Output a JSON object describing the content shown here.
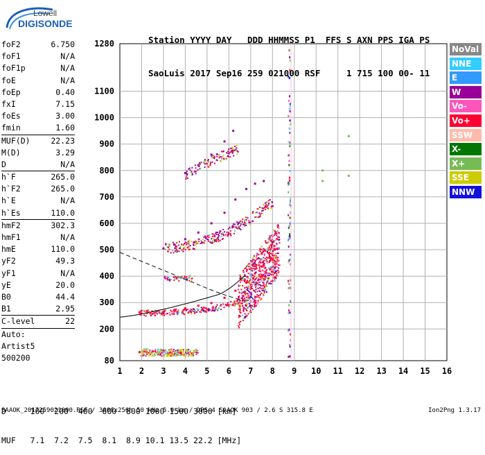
{
  "logo": {
    "line1": "Lowell",
    "line2": "DIGISONDE"
  },
  "header": {
    "line1": "Station YYYY DAY   DDD HHMMSS P1  FFS S AXN PPS IGA PS",
    "line2": "SaoLuis 2017 Sep16 259 021000 RSF     1 715 100 00- 11"
  },
  "params": [
    {
      "label": "foF2",
      "value": "6.750"
    },
    {
      "label": "foF1",
      "value": "N/A"
    },
    {
      "label": "foF1p",
      "value": "N/A"
    },
    {
      "label": "foE",
      "value": "N/A"
    },
    {
      "label": "foEp",
      "value": "0.40"
    },
    {
      "label": "fxI",
      "value": "7.15"
    },
    {
      "label": "foEs",
      "value": "3.00"
    },
    {
      "label": "fmin",
      "value": "1.60"
    },
    {
      "sep": true
    },
    {
      "label": "MUF(D)",
      "value": "22.23"
    },
    {
      "label": "M(D)",
      "value": "3.29"
    },
    {
      "label": "D",
      "value": "N/A"
    },
    {
      "sep": true
    },
    {
      "label": "h`F",
      "value": "265.0"
    },
    {
      "label": "h`F2",
      "value": "265.0"
    },
    {
      "label": "h`E",
      "value": "N/A"
    },
    {
      "label": "h`Es",
      "value": "110.0"
    },
    {
      "sep": true
    },
    {
      "label": "hmF2",
      "value": "302.3"
    },
    {
      "label": "hmF1",
      "value": "N/A"
    },
    {
      "label": "hmE",
      "value": "110.0"
    },
    {
      "label": "yF2",
      "value": "49.3"
    },
    {
      "label": "yF1",
      "value": "N/A"
    },
    {
      "label": "yE",
      "value": "20.0"
    },
    {
      "label": "B0",
      "value": "44.4"
    },
    {
      "label": "B1",
      "value": "2.95"
    },
    {
      "sep": true
    },
    {
      "label": "C-level",
      "value": "22"
    },
    {
      "sep": true
    },
    {
      "note": "Auto:"
    },
    {
      "note": "Artist5"
    },
    {
      "note": "500200"
    }
  ],
  "legend": [
    {
      "label": "NoVal",
      "color": "#888888"
    },
    {
      "label": "NNE",
      "color": "#33ccff"
    },
    {
      "label": "E",
      "color": "#3399ff"
    },
    {
      "label": "W",
      "color": "#990099"
    },
    {
      "label": "Vo-",
      "color": "#ff55bb"
    },
    {
      "label": "Vo+",
      "color": "#ff0033"
    },
    {
      "label": "SSW",
      "color": "#ffbbaa"
    },
    {
      "label": "X-",
      "color": "#007700"
    },
    {
      "label": "X+",
      "color": "#77bb55"
    },
    {
      "label": "SSE",
      "color": "#cccc00"
    },
    {
      "label": "NNW",
      "color": "#1111dd"
    }
  ],
  "tables": {
    "line1": "D     100  200  400  600  800 1000 1500 3000 [km]",
    "line2": "MUF   7.1  7.2  7.5  8.1  8.9 10.1 13.5 22.2 [MHz]"
  },
  "footer": {
    "left": "SAAOK_2017259021000.RSF / 300fx256h 50 kHz 5.0 km / DPS-4 SAAOK 903 / 2.6 S 315.8 E",
    "right": "Ion2Png 1.3.17"
  },
  "chart_data": {
    "type": "scatter",
    "xlim": [
      1,
      16
    ],
    "ylim": [
      80,
      1280
    ],
    "x_ticks": [
      1,
      2,
      3,
      4,
      5,
      6,
      7,
      8,
      9,
      10,
      11,
      12,
      13,
      14,
      15,
      16
    ],
    "y_ticks": [
      80,
      200,
      300,
      400,
      500,
      600,
      700,
      800,
      900,
      1000,
      1100,
      1280
    ],
    "grid": true,
    "legend_position": "right",
    "series": [
      {
        "name": "Vo+",
        "points": [
          [
            1.9,
            263
          ],
          [
            2.4,
            262
          ],
          [
            3.0,
            265
          ],
          [
            3.5,
            272
          ],
          [
            4.0,
            278
          ],
          [
            4.6,
            288
          ],
          [
            5.2,
            298
          ],
          [
            5.8,
            318
          ],
          [
            6.3,
            345
          ],
          [
            6.8,
            375
          ],
          [
            7.2,
            410
          ],
          [
            7.6,
            440
          ],
          [
            7.9,
            470
          ],
          [
            8.1,
            500
          ],
          [
            1.9,
            112
          ],
          [
            2.5,
            115
          ],
          [
            3.3,
            113
          ],
          [
            3.8,
            110
          ]
        ]
      },
      {
        "name": "W",
        "points": [
          [
            3.0,
            505
          ],
          [
            3.5,
            520
          ],
          [
            4.0,
            540
          ],
          [
            4.6,
            565
          ],
          [
            5.2,
            600
          ],
          [
            5.8,
            640
          ],
          [
            6.3,
            690
          ],
          [
            6.8,
            730
          ],
          [
            7.2,
            750
          ],
          [
            7.6,
            760
          ],
          [
            4.0,
            790
          ],
          [
            4.6,
            820
          ],
          [
            5.2,
            860
          ],
          [
            5.8,
            910
          ],
          [
            6.2,
            950
          ]
        ]
      },
      {
        "name": "X+",
        "points": [
          [
            3.7,
            395
          ],
          [
            4.2,
            400
          ],
          [
            10.3,
            800
          ],
          [
            10.3,
            760
          ],
          [
            11.5,
            780
          ],
          [
            11.5,
            930
          ]
        ]
      },
      {
        "name": "SSE",
        "points": [
          [
            2.4,
            110
          ],
          [
            3.3,
            118
          ],
          [
            3.8,
            120
          ],
          [
            4.4,
            116
          ]
        ]
      }
    ]
  }
}
